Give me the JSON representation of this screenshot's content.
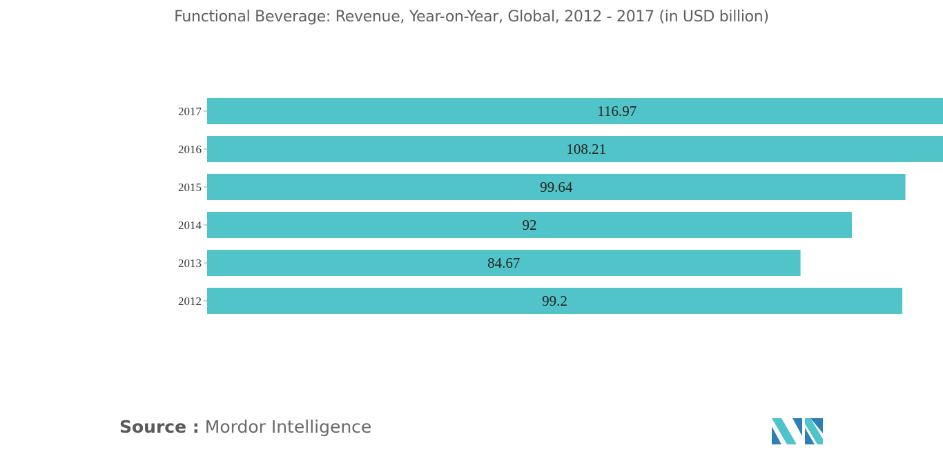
{
  "title": "Functional Beverage: Revenue, Year-on-Year, Global, 2012 - 2017 (in USD billion)",
  "source": {
    "label": "Source :",
    "name": "Mordor Intelligence"
  },
  "logo": {
    "name": "mordor-intelligence-logo",
    "text": "MI",
    "colors": [
      "#2f7fb5",
      "#4fc4ca"
    ]
  },
  "colors": {
    "bar": "#50c4c9",
    "title": "#5f5f5f",
    "tick": "#333333",
    "label": "#222222"
  },
  "chart_data": {
    "type": "bar",
    "orientation": "horizontal",
    "title": "Functional Beverage: Revenue, Year-on-Year, Global, 2012 - 2017 (in USD billion)",
    "categories": [
      "2017",
      "2016",
      "2015",
      "2014",
      "2013",
      "2012"
    ],
    "values": [
      116.97,
      108.21,
      99.64,
      92,
      84.67,
      99.2
    ],
    "value_labels": [
      "116.97",
      "108.21",
      "99.64",
      "92",
      "84.67",
      "99.2"
    ],
    "xlim": [
      0,
      105
    ],
    "clipped_beyond_plot": true,
    "xlabel": "",
    "ylabel": "",
    "grid": false,
    "legend": "none"
  }
}
